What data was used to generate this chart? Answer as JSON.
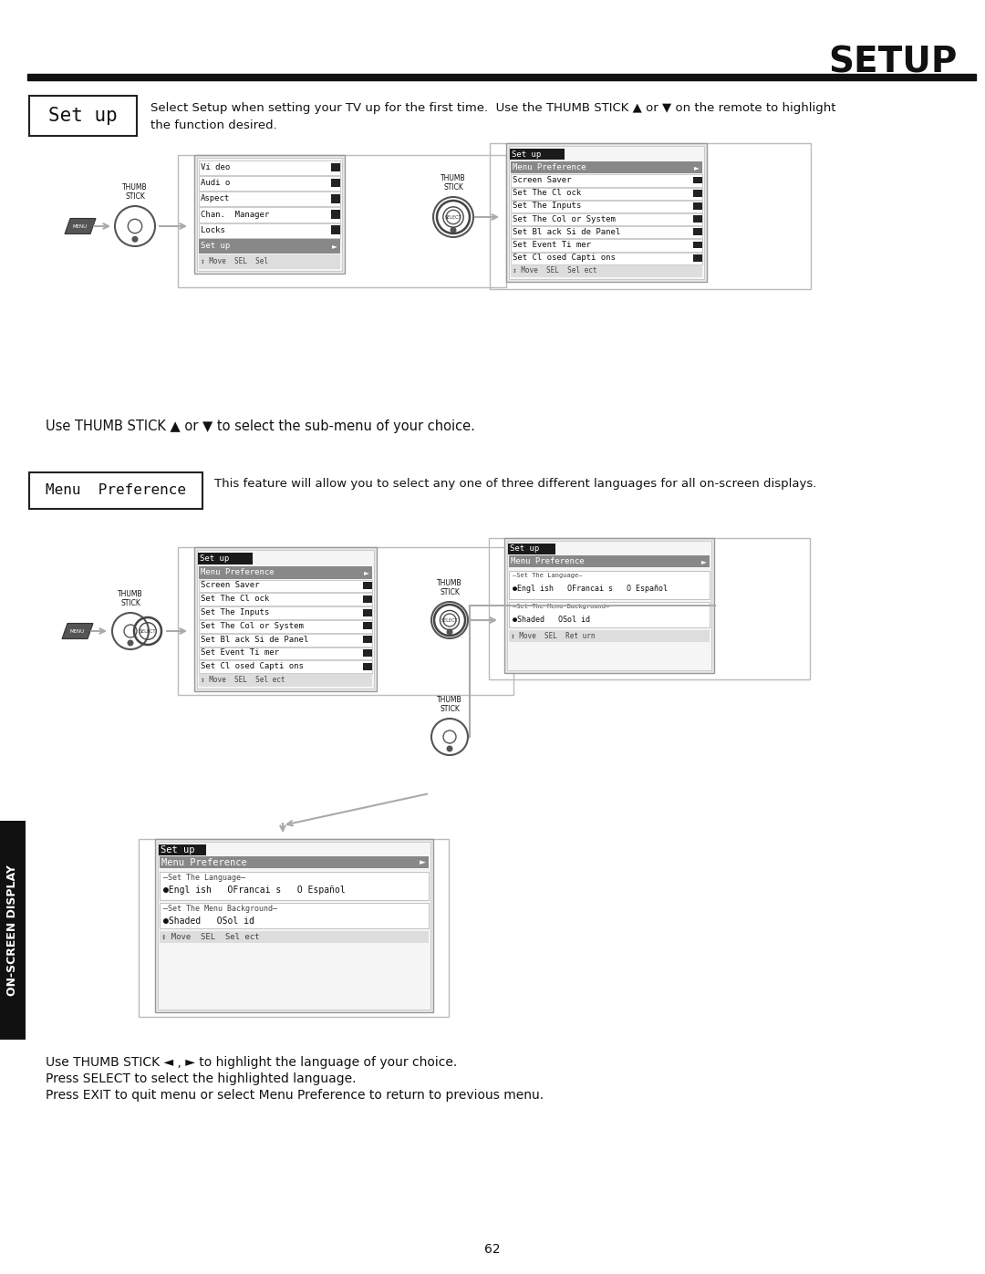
{
  "title": "SETUP",
  "bg_color": "#ffffff",
  "setup_box_label": "Set up",
  "setup_desc": "Select Setup when setting your TV up for the first time.  Use the THUMB STICK ▲ or ▼ on the remote to highlight\nthe function desired.",
  "subtext1": "Use THUMB STICK ▲ or ▼ to select the sub-menu of your choice.",
  "menu_pref_box_label": "Menu  Preference",
  "menu_pref_desc": "This feature will allow you to select any one of three different languages for all on-screen displays.",
  "bottom_text1": "Use THUMB STICK ◄ , ► to highlight the language of your choice.",
  "bottom_text2": "Press SELECT to select the highlighted language.",
  "bottom_text3": "Press EXIT to quit menu or select Menu Preference to return to previous menu.",
  "page_num": "62",
  "left_bar_label": "ON-SCREEN DISPLAY",
  "menu1_items": [
    "Vi deo",
    "Audi o",
    "Aspect",
    "Chan.  Manager",
    "Locks",
    "Set up",
    "↕ Move  SEL  Sel"
  ],
  "menu2_items": [
    "Set up",
    "Menu Preference",
    "Screen Saver",
    "Set The Cl ock",
    "Set The Inputs",
    "Set The Col or System",
    "Set Bl ack Si de Panel",
    "Set Event Ti mer",
    "Set Cl osed Capti ons",
    "↕ Move  SEL  Sel ect"
  ]
}
